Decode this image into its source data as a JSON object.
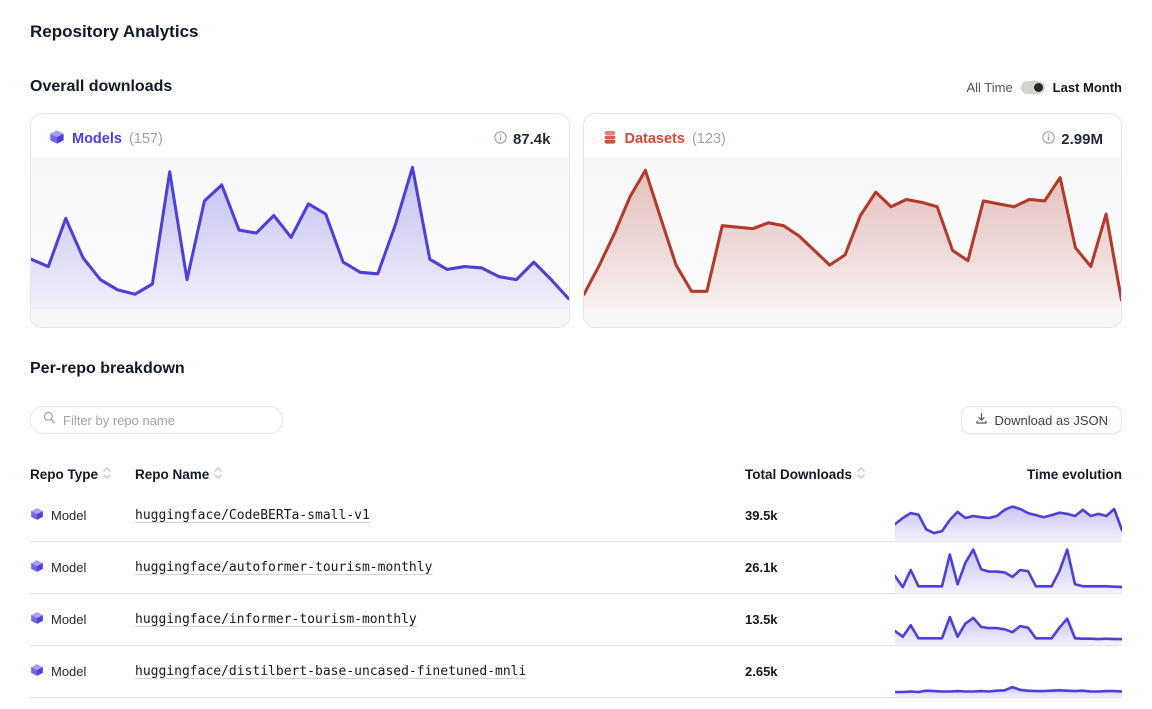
{
  "page": {
    "title": "Repository Analytics"
  },
  "overall": {
    "heading": "Overall downloads",
    "toggle": {
      "left_label": "All Time",
      "right_label": "Last Month",
      "selected": "Last Month"
    },
    "models": {
      "label": "Models",
      "count": "(157)",
      "total": "87.4k",
      "color": "#4c40d8",
      "values": [
        32,
        27,
        60,
        33,
        18,
        11,
        8,
        15,
        92,
        18,
        72,
        83,
        52,
        50,
        62,
        47,
        70,
        63,
        30,
        23,
        22,
        55,
        95,
        32,
        25,
        27,
        26,
        20,
        18,
        30,
        18,
        5
      ]
    },
    "datasets": {
      "label": "Datasets",
      "count": "(123)",
      "total": "2.99M",
      "color": "#b23a2b",
      "accent": "#d04a38",
      "values": [
        8,
        28,
        50,
        75,
        93,
        60,
        28,
        10,
        10,
        55,
        54,
        53,
        57,
        55,
        48,
        38,
        28,
        35,
        62,
        78,
        68,
        73,
        71,
        68,
        38,
        31,
        72,
        70,
        68,
        73,
        72,
        88,
        40,
        27,
        63,
        4
      ]
    }
  },
  "breakdown": {
    "heading": "Per-repo breakdown",
    "filter_placeholder": "Filter by repo name",
    "download_button": "Download as JSON",
    "table": {
      "headers": [
        {
          "label": "Repo Type",
          "sortable": true
        },
        {
          "label": "Repo Name",
          "sortable": true
        },
        {
          "label": "Total Downloads",
          "sortable": true
        },
        {
          "label": "Time evolution",
          "sortable": false
        }
      ],
      "rows": [
        {
          "type": "Model",
          "name": "huggingface/CodeBERTa-small-v1",
          "downloads": "39.5k",
          "sparkline": {
            "color": "#4c40d8",
            "values": [
              35,
              50,
              62,
              58,
              22,
              13,
              18,
              45,
              65,
              50,
              55,
              52,
              50,
              55,
              70,
              78,
              72,
              62,
              57,
              52,
              57,
              63,
              60,
              55,
              70,
              55,
              60,
              55,
              72,
              20
            ]
          }
        },
        {
          "type": "Model",
          "name": "huggingface/autoformer-tourism-monthly",
          "downloads": "26.1k",
          "sparkline": {
            "color": "#4c40d8",
            "values": [
              35,
              8,
              50,
              10,
              10,
              10,
              10,
              88,
              15,
              68,
              100,
              52,
              46,
              46,
              44,
              33,
              50,
              47,
              10,
              10,
              10,
              47,
              100,
              15,
              10,
              10,
              10,
              10,
              9,
              8
            ]
          }
        },
        {
          "type": "Model",
          "name": "huggingface/informer-tourism-monthly",
          "downloads": "13.5k",
          "sparkline": {
            "color": "#4c40d8",
            "values": [
              28,
              14,
              42,
              10,
              10,
              10,
              10,
              62,
              14,
              46,
              60,
              38,
              35,
              35,
              32,
              25,
              40,
              36,
              10,
              10,
              10,
              36,
              58,
              10,
              9,
              9,
              8,
              9,
              8,
              8
            ]
          }
        },
        {
          "type": "Model",
          "name": "huggingface/distilbert-base-uncased-finetuned-mnli",
          "downloads": "2.65k",
          "sparkline": {
            "color": "#4c40d8",
            "values": [
              6,
              6,
              7,
              6,
              9,
              8,
              7,
              7,
              8,
              7,
              7,
              8,
              7,
              9,
              10,
              18,
              11,
              9,
              8,
              8,
              9,
              10,
              9,
              8,
              9,
              7,
              7,
              8,
              8,
              7
            ]
          }
        }
      ]
    }
  },
  "chart_data": [
    {
      "type": "area",
      "title": "Models downloads (last month)",
      "series": [
        {
          "name": "Models",
          "values": [
            32,
            27,
            60,
            33,
            18,
            11,
            8,
            15,
            92,
            18,
            72,
            83,
            52,
            50,
            62,
            47,
            70,
            63,
            30,
            23,
            22,
            55,
            95,
            32,
            25,
            27,
            26,
            20,
            18,
            30,
            18,
            5
          ]
        }
      ],
      "legend_position": "none",
      "grid": false
    },
    {
      "type": "area",
      "title": "Datasets downloads (last month)",
      "series": [
        {
          "name": "Datasets",
          "values": [
            8,
            28,
            50,
            75,
            93,
            60,
            28,
            10,
            10,
            55,
            54,
            53,
            57,
            55,
            48,
            38,
            28,
            35,
            62,
            78,
            68,
            73,
            71,
            68,
            38,
            31,
            72,
            70,
            68,
            73,
            72,
            88,
            40,
            27,
            63,
            4
          ]
        }
      ],
      "legend_position": "none",
      "grid": false
    }
  ]
}
